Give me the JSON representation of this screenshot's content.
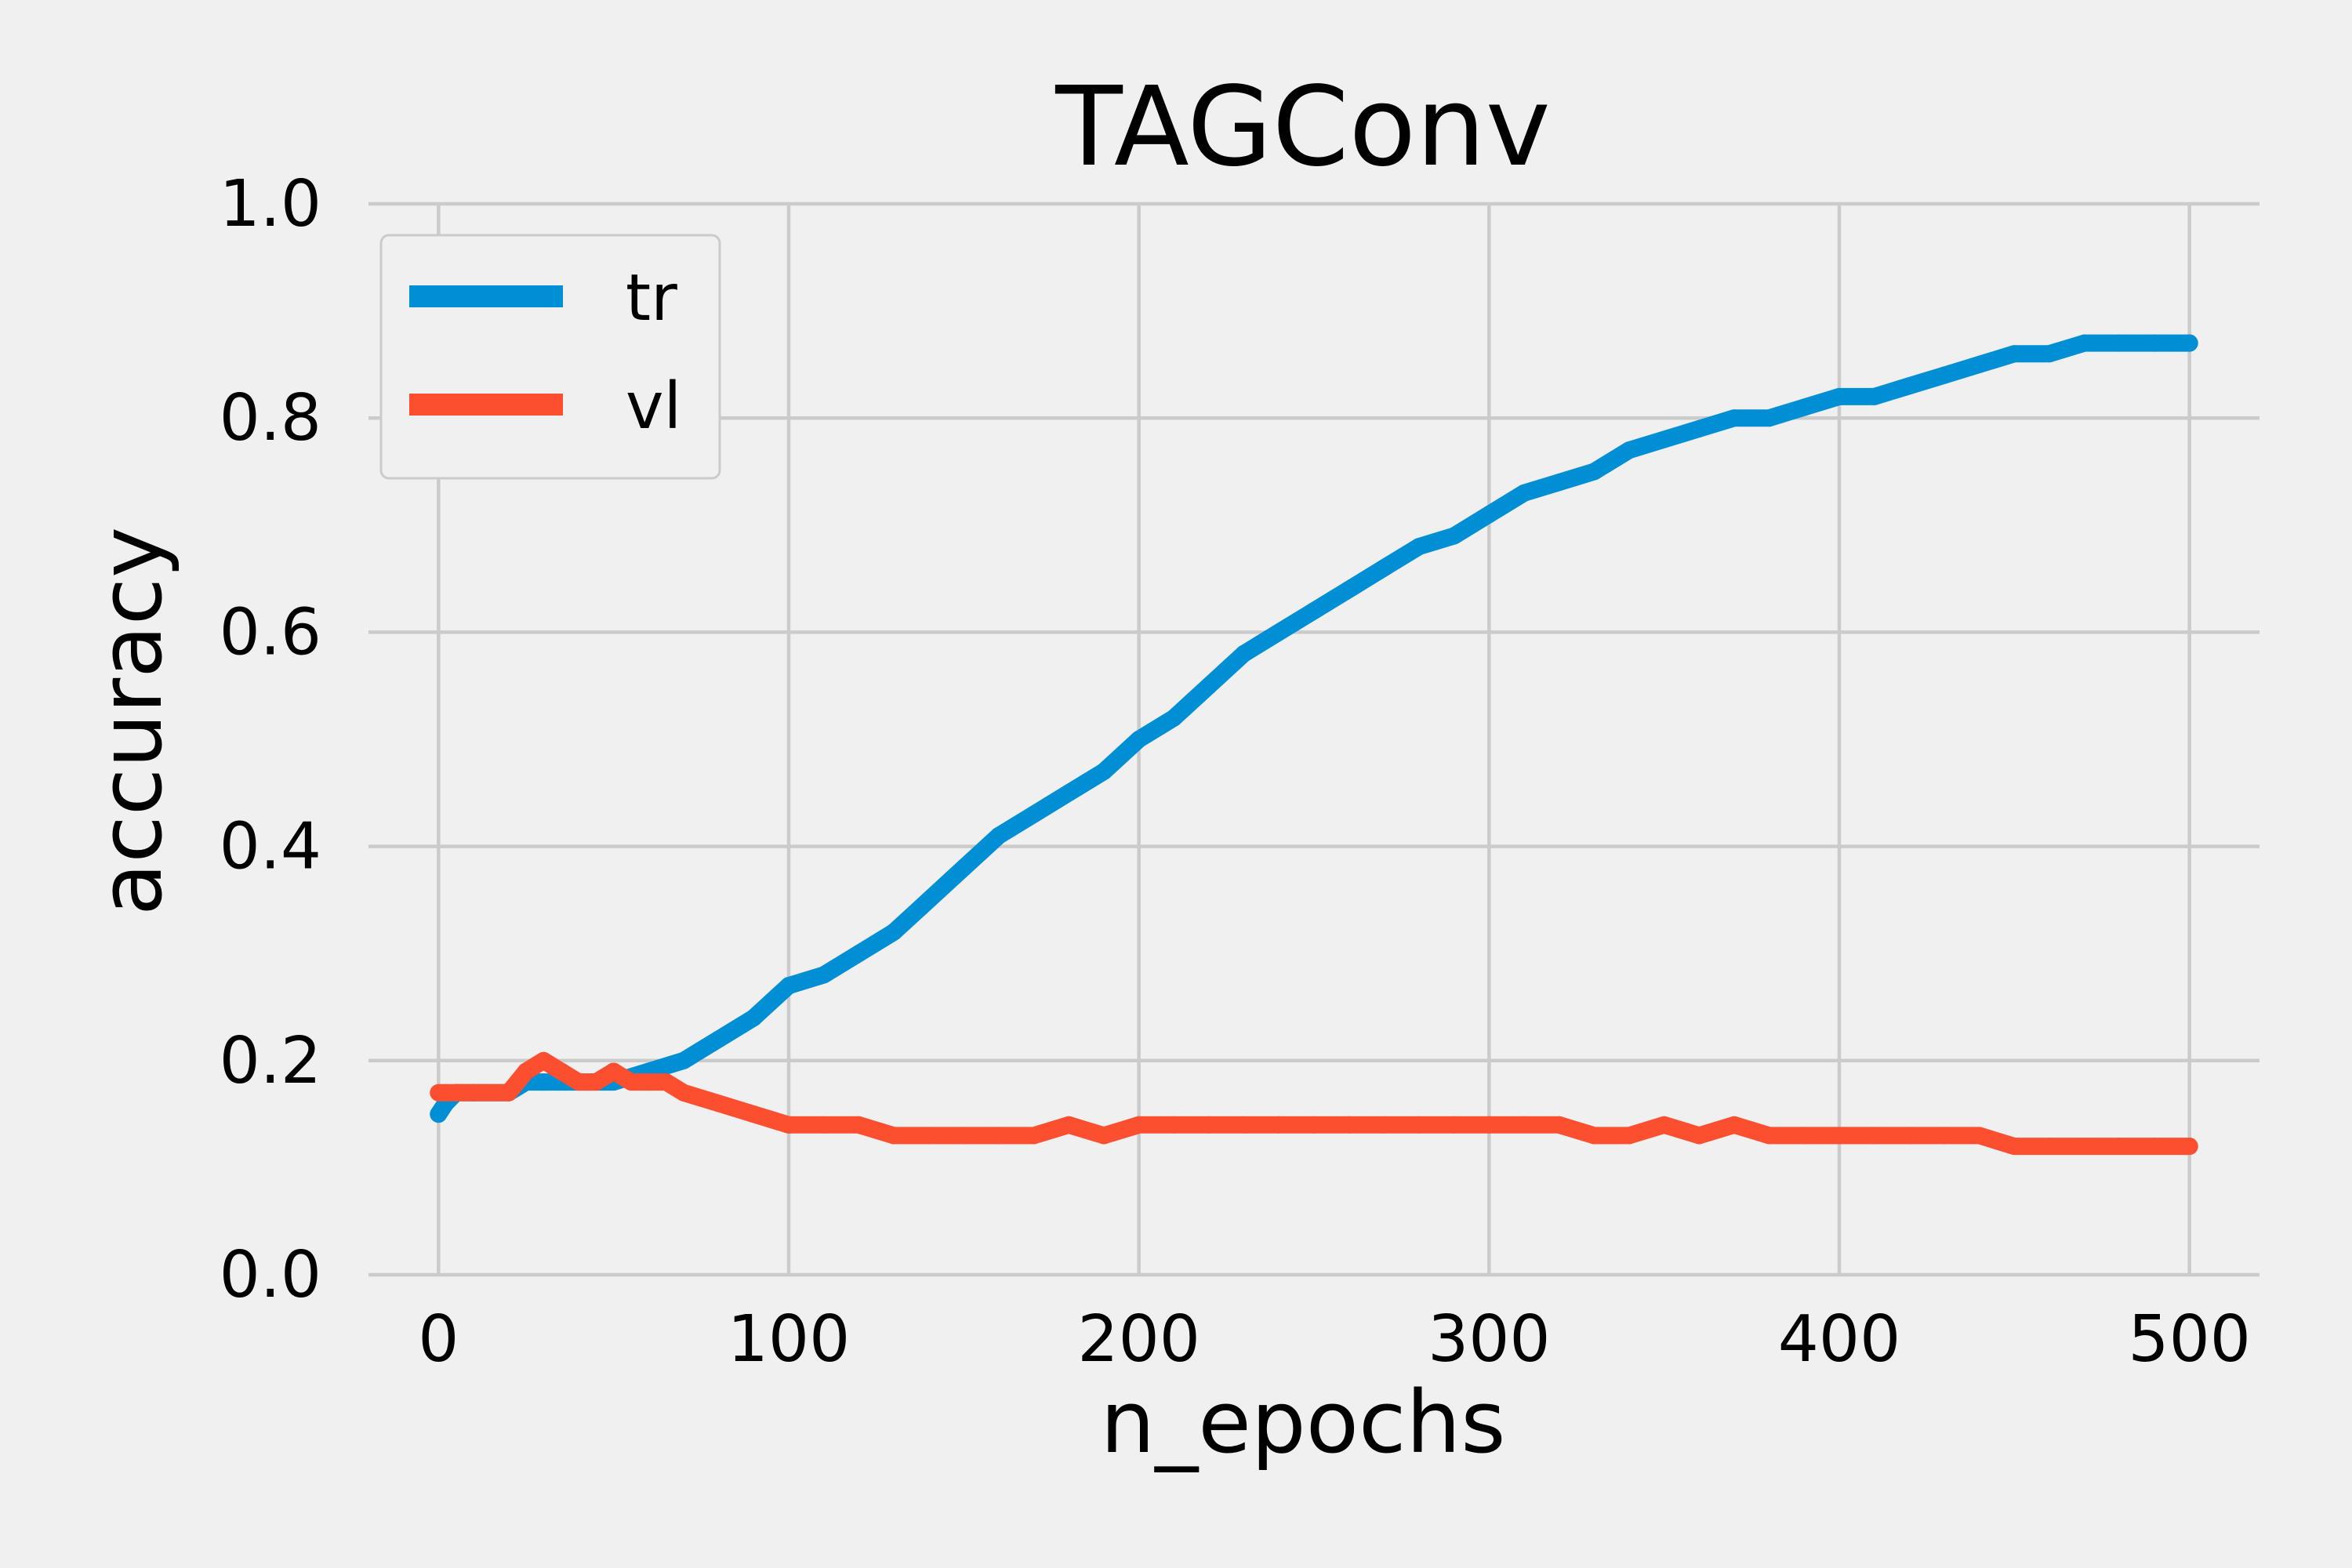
{
  "chart_data": {
    "type": "line",
    "title": "TAGConv",
    "xlabel": "n_epochs",
    "ylabel": "accuracy",
    "xlim": [
      -20,
      520
    ],
    "ylim": [
      0.0,
      1.0
    ],
    "x_ticks": [
      "0",
      "100",
      "200",
      "300",
      "400",
      "500"
    ],
    "y_ticks": [
      "0.0",
      "0.2",
      "0.4",
      "0.6",
      "0.8",
      "1.0"
    ],
    "grid": true,
    "legend_position": "upper-left",
    "series": [
      {
        "name": "tr",
        "color": "#008fd5",
        "x": [
          0,
          2,
          5,
          10,
          20,
          25,
          30,
          40,
          50,
          60,
          70,
          80,
          90,
          100,
          110,
          120,
          130,
          140,
          150,
          160,
          170,
          180,
          190,
          200,
          210,
          220,
          230,
          240,
          250,
          260,
          270,
          280,
          290,
          300,
          310,
          320,
          330,
          340,
          350,
          360,
          370,
          380,
          390,
          400,
          410,
          420,
          430,
          440,
          450,
          460,
          470,
          480,
          490,
          500
        ],
        "y": [
          0.15,
          0.16,
          0.17,
          0.17,
          0.17,
          0.18,
          0.18,
          0.18,
          0.18,
          0.19,
          0.2,
          0.22,
          0.24,
          0.27,
          0.28,
          0.3,
          0.32,
          0.35,
          0.38,
          0.41,
          0.43,
          0.45,
          0.47,
          0.5,
          0.52,
          0.55,
          0.58,
          0.6,
          0.62,
          0.64,
          0.66,
          0.68,
          0.69,
          0.71,
          0.73,
          0.74,
          0.75,
          0.77,
          0.78,
          0.79,
          0.8,
          0.8,
          0.81,
          0.82,
          0.82,
          0.83,
          0.84,
          0.85,
          0.86,
          0.86,
          0.87,
          0.87,
          0.87,
          0.87
        ]
      },
      {
        "name": "vl",
        "color": "#fc4f30",
        "x": [
          0,
          2,
          5,
          10,
          20,
          25,
          30,
          35,
          40,
          45,
          50,
          55,
          60,
          65,
          70,
          80,
          90,
          100,
          110,
          120,
          130,
          140,
          150,
          160,
          170,
          180,
          190,
          200,
          210,
          220,
          230,
          240,
          250,
          260,
          270,
          280,
          290,
          300,
          310,
          320,
          330,
          340,
          350,
          360,
          370,
          380,
          390,
          400,
          410,
          420,
          430,
          440,
          450,
          460,
          470,
          480,
          490,
          500
        ],
        "y": [
          0.17,
          0.17,
          0.17,
          0.17,
          0.17,
          0.19,
          0.2,
          0.19,
          0.18,
          0.18,
          0.19,
          0.18,
          0.18,
          0.18,
          0.17,
          0.16,
          0.15,
          0.14,
          0.14,
          0.14,
          0.13,
          0.13,
          0.13,
          0.13,
          0.13,
          0.14,
          0.13,
          0.14,
          0.14,
          0.14,
          0.14,
          0.14,
          0.14,
          0.14,
          0.14,
          0.14,
          0.14,
          0.14,
          0.14,
          0.14,
          0.13,
          0.13,
          0.14,
          0.13,
          0.14,
          0.13,
          0.13,
          0.13,
          0.13,
          0.13,
          0.13,
          0.13,
          0.12,
          0.12,
          0.12,
          0.12,
          0.12,
          0.12
        ]
      }
    ]
  }
}
